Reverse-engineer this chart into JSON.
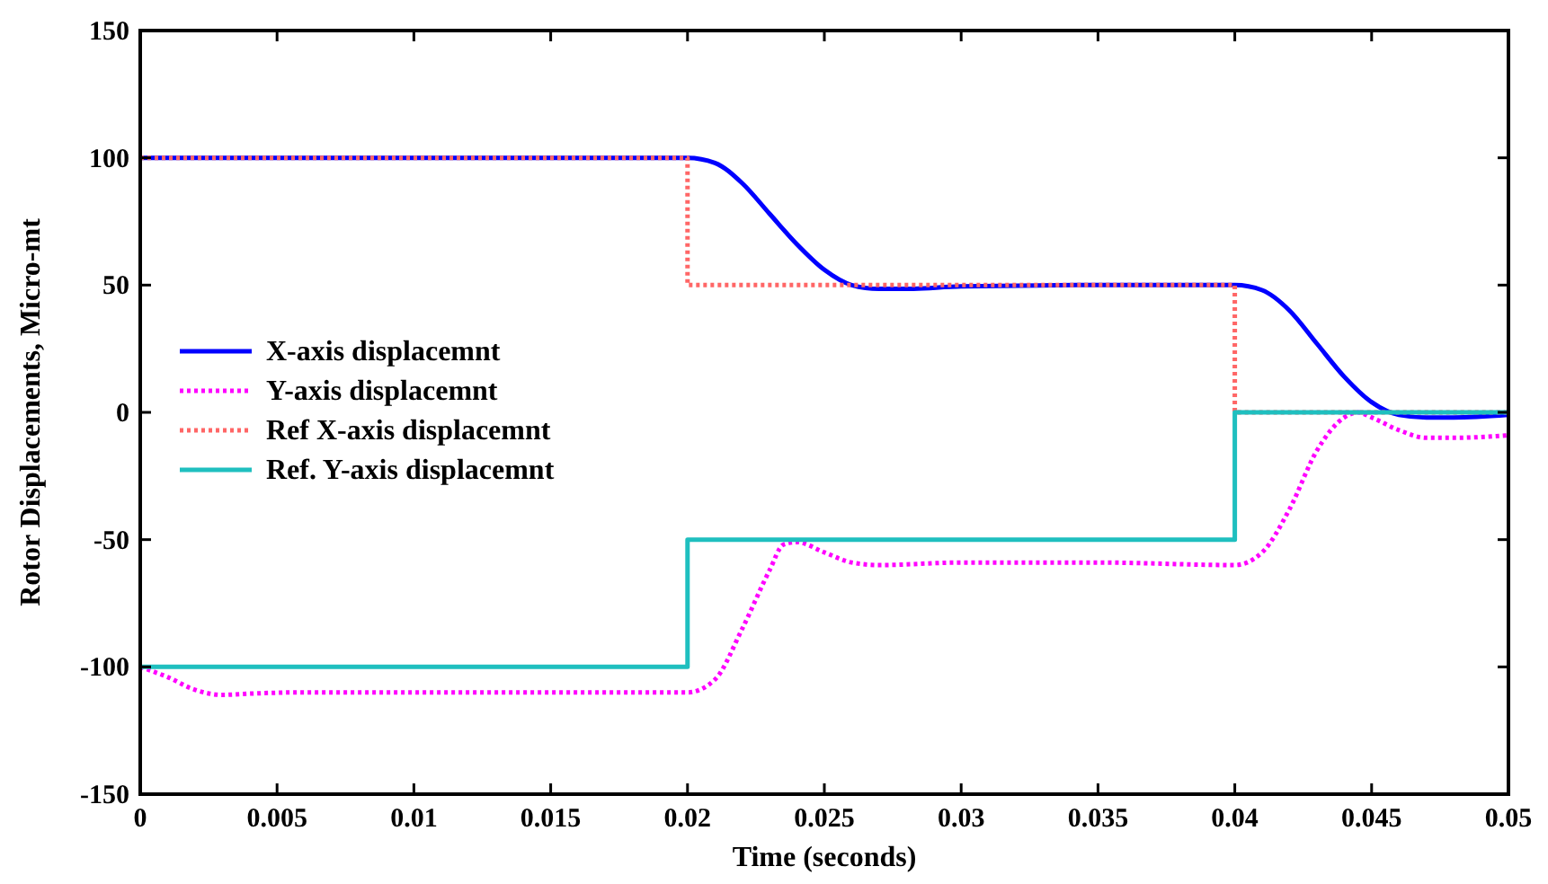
{
  "chart_data": {
    "type": "line",
    "xlabel": "Time (seconds)",
    "ylabel": "Rotor Displacements, Micro-mt",
    "xlim": [
      0,
      0.05
    ],
    "ylim": [
      -150,
      150
    ],
    "xticks": [
      0,
      0.005,
      0.01,
      0.015,
      0.02,
      0.025,
      0.03,
      0.035,
      0.04,
      0.045,
      0.05
    ],
    "yticks": [
      -150,
      -100,
      -50,
      0,
      50,
      100,
      150
    ],
    "grid": false,
    "legend": "left",
    "marker": "none",
    "series": [
      {
        "name": "X-axis displacemnt",
        "color": "#0000ff",
        "line_style": "solid",
        "x": [
          0,
          0.01,
          0.02,
          0.021,
          0.022,
          0.023,
          0.024,
          0.025,
          0.026,
          0.027,
          0.028,
          0.03,
          0.035,
          0.04,
          0.041,
          0.042,
          0.043,
          0.044,
          0.045,
          0.046,
          0.047,
          0.048,
          0.05
        ],
        "values": [
          100,
          100,
          100,
          98,
          90,
          78,
          66,
          56,
          50,
          48.5,
          48.5,
          49.5,
          50,
          50,
          48,
          40,
          27,
          14,
          4,
          -1,
          -2,
          -2,
          -1
        ]
      },
      {
        "name": "Y-axis displacemnt",
        "color": "#ff00ff",
        "line_style": "dotted",
        "x": [
          0,
          0.001,
          0.002,
          0.003,
          0.004,
          0.006,
          0.01,
          0.015,
          0.02,
          0.021,
          0.022,
          0.023,
          0.0235,
          0.024,
          0.025,
          0.026,
          0.027,
          0.03,
          0.035,
          0.04,
          0.041,
          0.042,
          0.043,
          0.044,
          0.0445,
          0.045,
          0.046,
          0.047,
          0.048,
          0.05
        ],
        "values": [
          -100,
          -104,
          -109,
          -111,
          -110.5,
          -110,
          -110,
          -110,
          -110,
          -105,
          -85,
          -62,
          -52,
          -51,
          -55,
          -59,
          -60,
          -59,
          -59,
          -60,
          -55,
          -38,
          -15,
          -2,
          0,
          -2,
          -7,
          -10,
          -10,
          -9
        ]
      },
      {
        "name": "Ref X-axis displacemnt",
        "type": "step",
        "color": "#ff6666",
        "line_style": "dotted",
        "x": [
          0,
          0.02,
          0.04,
          0.05
        ],
        "values": [
          100,
          50,
          0,
          0
        ]
      },
      {
        "name": "Ref. Y-axis displacemnt",
        "type": "step",
        "color": "#1fbfbf",
        "line_style": "solid",
        "x": [
          0,
          0.02,
          0.04,
          0.05
        ],
        "values": [
          -100,
          -50,
          0,
          0
        ]
      }
    ]
  }
}
